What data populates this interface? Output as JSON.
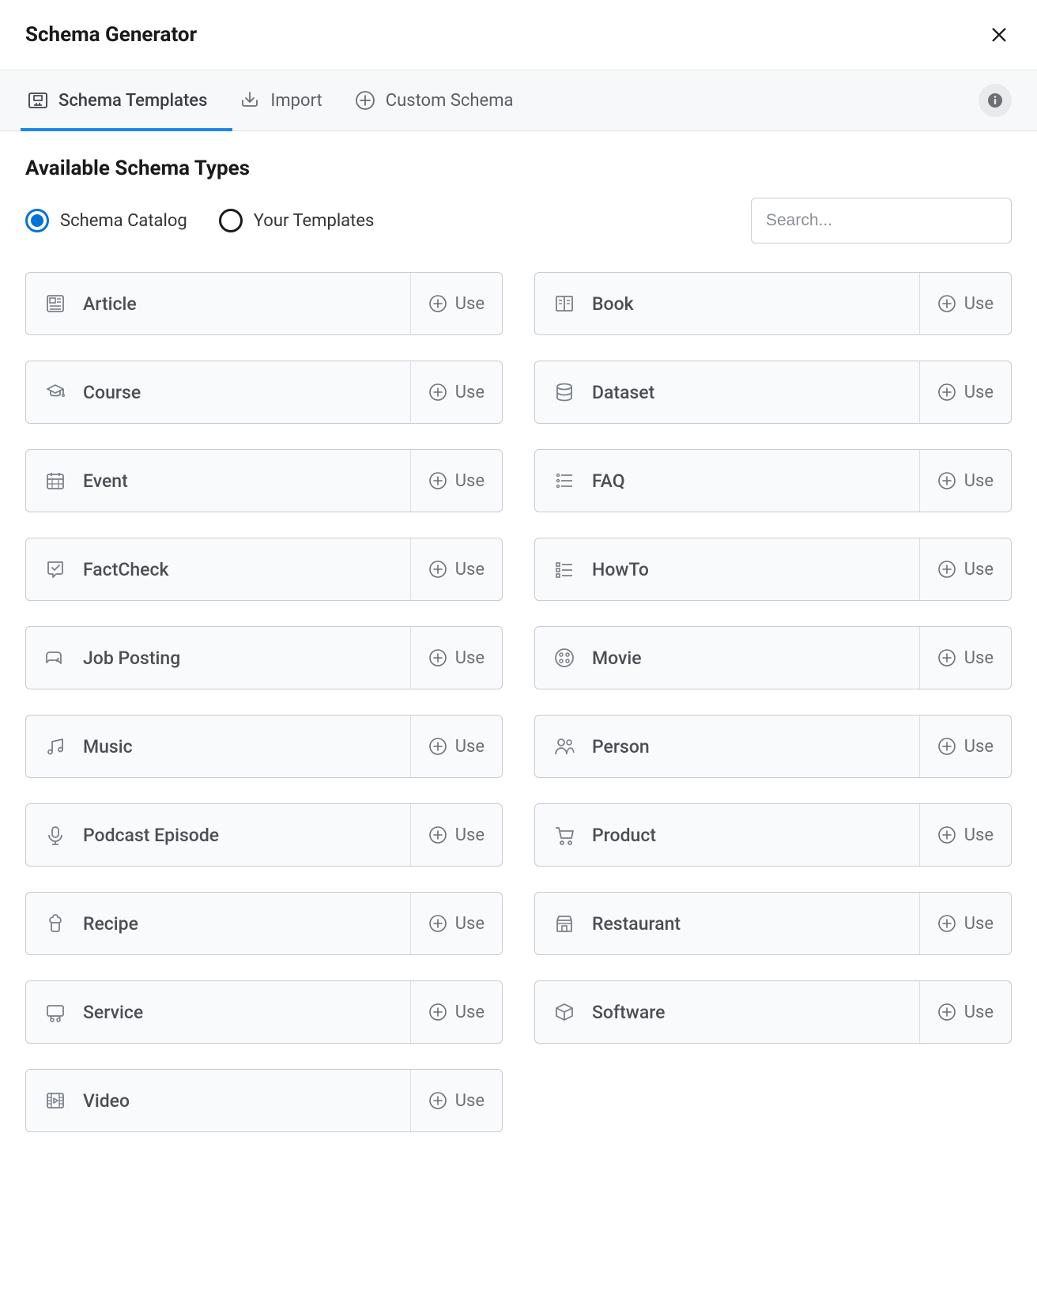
{
  "header": {
    "title": "Schema Generator"
  },
  "tabs": [
    {
      "label": "Schema Templates",
      "active": true,
      "icon": "template"
    },
    {
      "label": "Import",
      "active": false,
      "icon": "import"
    },
    {
      "label": "Custom Schema",
      "active": false,
      "icon": "plus-circle"
    }
  ],
  "section_title": "Available Schema Types",
  "radios": [
    {
      "label": "Schema Catalog",
      "selected": true
    },
    {
      "label": "Your Templates",
      "selected": false
    }
  ],
  "search": {
    "placeholder": "Search..."
  },
  "use_label": "Use",
  "cards": [
    {
      "label": "Article",
      "icon": "article"
    },
    {
      "label": "Book",
      "icon": "book"
    },
    {
      "label": "Course",
      "icon": "course"
    },
    {
      "label": "Dataset",
      "icon": "dataset"
    },
    {
      "label": "Event",
      "icon": "event"
    },
    {
      "label": "FAQ",
      "icon": "faq"
    },
    {
      "label": "FactCheck",
      "icon": "factcheck"
    },
    {
      "label": "HowTo",
      "icon": "howto"
    },
    {
      "label": "Job Posting",
      "icon": "job"
    },
    {
      "label": "Movie",
      "icon": "movie"
    },
    {
      "label": "Music",
      "icon": "music"
    },
    {
      "label": "Person",
      "icon": "person"
    },
    {
      "label": "Podcast Episode",
      "icon": "podcast"
    },
    {
      "label": "Product",
      "icon": "product"
    },
    {
      "label": "Recipe",
      "icon": "recipe"
    },
    {
      "label": "Restaurant",
      "icon": "restaurant"
    },
    {
      "label": "Service",
      "icon": "service"
    },
    {
      "label": "Software",
      "icon": "software"
    },
    {
      "label": "Video",
      "icon": "video"
    }
  ],
  "colors": {
    "accent": "#0073d6",
    "tab_underline": "#1e88e5",
    "border": "#c8ccd0",
    "card_bg": "#f9fafb",
    "tabs_bg": "#f7f8f9",
    "text_primary": "#1a1a1a",
    "text_secondary": "#4a4f55",
    "icon_gray": "#7a8088"
  }
}
